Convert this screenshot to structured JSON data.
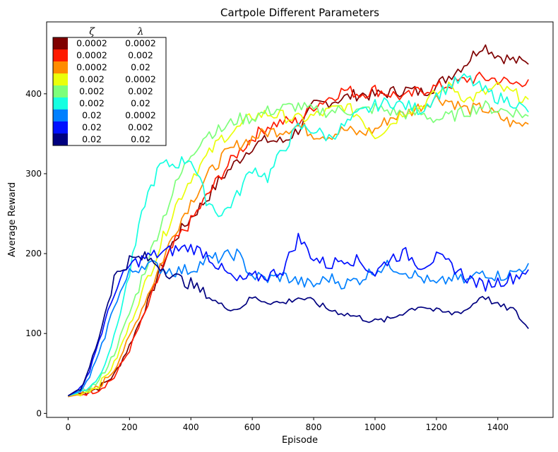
{
  "chart_data": {
    "type": "line",
    "title": "Cartpole Different Parameters",
    "xlabel": "Episode",
    "ylabel": "Average Reward",
    "xlim": [
      -70,
      1580
    ],
    "ylim": [
      -5,
      490
    ],
    "xticks": [
      0,
      200,
      400,
      600,
      800,
      1000,
      1200,
      1400
    ],
    "yticks": [
      0,
      100,
      200,
      300,
      400
    ],
    "grid": false,
    "legend": {
      "placement": "top-left",
      "columns": [
        "ζ",
        "λ"
      ],
      "rows": [
        {
          "zeta": "0.0002",
          "lambda": "0.0002",
          "color": "#7f0000"
        },
        {
          "zeta": "0.0002",
          "lambda": "0.002",
          "color": "#ff1a00"
        },
        {
          "zeta": "0.0002",
          "lambda": "0.02",
          "color": "#ff8c00"
        },
        {
          "zeta": "0.002",
          "lambda": "0.0002",
          "color": "#eaff0c"
        },
        {
          "zeta": "0.002",
          "lambda": "0.002",
          "color": "#7dff7a"
        },
        {
          "zeta": "0.002",
          "lambda": "0.02",
          "color": "#16ffe1"
        },
        {
          "zeta": "0.02",
          "lambda": "0.0002",
          "color": "#0080ff"
        },
        {
          "zeta": "0.02",
          "lambda": "0.002",
          "color": "#0010ff"
        },
        {
          "zeta": "0.02",
          "lambda": "0.02",
          "color": "#000080"
        }
      ]
    },
    "series": [
      {
        "color": "#7f0000",
        "points": [
          [
            0,
            22
          ],
          [
            50,
            26
          ],
          [
            100,
            32
          ],
          [
            150,
            48
          ],
          [
            200,
            85
          ],
          [
            250,
            130
          ],
          [
            300,
            180
          ],
          [
            350,
            220
          ],
          [
            400,
            245
          ],
          [
            450,
            268
          ],
          [
            500,
            295
          ],
          [
            550,
            315
          ],
          [
            600,
            335
          ],
          [
            650,
            342
          ],
          [
            700,
            340
          ],
          [
            750,
            355
          ],
          [
            800,
            385
          ],
          [
            850,
            390
          ],
          [
            900,
            395
          ],
          [
            950,
            400
          ],
          [
            1000,
            398
          ],
          [
            1050,
            402
          ],
          [
            1100,
            405
          ],
          [
            1150,
            402
          ],
          [
            1200,
            410
          ],
          [
            1250,
            425
          ],
          [
            1300,
            440
          ],
          [
            1350,
            462
          ],
          [
            1400,
            448
          ],
          [
            1450,
            442
          ],
          [
            1500,
            437
          ]
        ]
      },
      {
        "color": "#ff1a00",
        "points": [
          [
            0,
            21
          ],
          [
            50,
            25
          ],
          [
            100,
            30
          ],
          [
            150,
            45
          ],
          [
            200,
            80
          ],
          [
            250,
            125
          ],
          [
            300,
            175
          ],
          [
            350,
            215
          ],
          [
            400,
            240
          ],
          [
            450,
            270
          ],
          [
            500,
            300
          ],
          [
            550,
            325
          ],
          [
            600,
            345
          ],
          [
            650,
            360
          ],
          [
            700,
            365
          ],
          [
            750,
            365
          ],
          [
            800,
            385
          ],
          [
            850,
            395
          ],
          [
            900,
            405
          ],
          [
            950,
            400
          ],
          [
            1000,
            405
          ],
          [
            1050,
            400
          ],
          [
            1100,
            395
          ],
          [
            1150,
            405
          ],
          [
            1200,
            408
          ],
          [
            1250,
            412
          ],
          [
            1300,
            418
          ],
          [
            1350,
            420
          ],
          [
            1400,
            418
          ],
          [
            1450,
            412
          ],
          [
            1500,
            418
          ]
        ]
      },
      {
        "color": "#ff8c00",
        "points": [
          [
            0,
            21
          ],
          [
            50,
            25
          ],
          [
            100,
            33
          ],
          [
            150,
            55
          ],
          [
            200,
            95
          ],
          [
            250,
            140
          ],
          [
            300,
            185
          ],
          [
            350,
            230
          ],
          [
            400,
            265
          ],
          [
            450,
            295
          ],
          [
            500,
            320
          ],
          [
            550,
            335
          ],
          [
            600,
            345
          ],
          [
            650,
            352
          ],
          [
            700,
            355
          ],
          [
            750,
            360
          ],
          [
            800,
            350
          ],
          [
            850,
            348
          ],
          [
            900,
            355
          ],
          [
            950,
            350
          ],
          [
            1000,
            355
          ],
          [
            1050,
            370
          ],
          [
            1100,
            375
          ],
          [
            1150,
            385
          ],
          [
            1200,
            395
          ],
          [
            1250,
            390
          ],
          [
            1300,
            380
          ],
          [
            1350,
            382
          ],
          [
            1400,
            372
          ],
          [
            1450,
            362
          ],
          [
            1500,
            362
          ]
        ]
      },
      {
        "color": "#eaff0c",
        "points": [
          [
            0,
            22
          ],
          [
            50,
            26
          ],
          [
            100,
            35
          ],
          [
            150,
            62
          ],
          [
            200,
            110
          ],
          [
            250,
            160
          ],
          [
            300,
            210
          ],
          [
            350,
            260
          ],
          [
            400,
            295
          ],
          [
            450,
            320
          ],
          [
            500,
            345
          ],
          [
            550,
            355
          ],
          [
            600,
            372
          ],
          [
            650,
            375
          ],
          [
            700,
            372
          ],
          [
            750,
            368
          ],
          [
            800,
            372
          ],
          [
            850,
            378
          ],
          [
            900,
            385
          ],
          [
            950,
            372
          ],
          [
            1000,
            348
          ],
          [
            1050,
            362
          ],
          [
            1100,
            380
          ],
          [
            1150,
            385
          ],
          [
            1200,
            400
          ],
          [
            1250,
            410
          ],
          [
            1300,
            392
          ],
          [
            1350,
            400
          ],
          [
            1400,
            408
          ],
          [
            1450,
            400
          ],
          [
            1500,
            393
          ]
        ]
      },
      {
        "color": "#7dff7a",
        "points": [
          [
            0,
            22
          ],
          [
            50,
            27
          ],
          [
            100,
            40
          ],
          [
            150,
            75
          ],
          [
            200,
            125
          ],
          [
            250,
            180
          ],
          [
            300,
            235
          ],
          [
            350,
            285
          ],
          [
            400,
            325
          ],
          [
            450,
            350
          ],
          [
            500,
            355
          ],
          [
            550,
            368
          ],
          [
            600,
            370
          ],
          [
            650,
            378
          ],
          [
            700,
            382
          ],
          [
            750,
            385
          ],
          [
            800,
            378
          ],
          [
            850,
            378
          ],
          [
            900,
            380
          ],
          [
            950,
            378
          ],
          [
            1000,
            382
          ],
          [
            1050,
            378
          ],
          [
            1100,
            375
          ],
          [
            1150,
            375
          ],
          [
            1200,
            368
          ],
          [
            1250,
            372
          ],
          [
            1300,
            378
          ],
          [
            1350,
            385
          ],
          [
            1400,
            380
          ],
          [
            1450,
            378
          ],
          [
            1500,
            372
          ]
        ]
      },
      {
        "color": "#16ffe1",
        "points": [
          [
            0,
            22
          ],
          [
            50,
            28
          ],
          [
            100,
            45
          ],
          [
            150,
            95
          ],
          [
            200,
            175
          ],
          [
            250,
            265
          ],
          [
            300,
            310
          ],
          [
            350,
            312
          ],
          [
            400,
            320
          ],
          [
            450,
            268
          ],
          [
            500,
            248
          ],
          [
            550,
            272
          ],
          [
            600,
            308
          ],
          [
            650,
            295
          ],
          [
            700,
            330
          ],
          [
            750,
            358
          ],
          [
            800,
            355
          ],
          [
            850,
            345
          ],
          [
            900,
            360
          ],
          [
            950,
            375
          ],
          [
            1000,
            385
          ],
          [
            1050,
            390
          ],
          [
            1100,
            385
          ],
          [
            1150,
            380
          ],
          [
            1200,
            398
          ],
          [
            1250,
            412
          ],
          [
            1300,
            420
          ],
          [
            1350,
            405
          ],
          [
            1400,
            395
          ],
          [
            1450,
            390
          ],
          [
            1500,
            377
          ]
        ]
      },
      {
        "color": "#0080ff",
        "points": [
          [
            0,
            22
          ],
          [
            50,
            30
          ],
          [
            100,
            72
          ],
          [
            150,
            135
          ],
          [
            200,
            175
          ],
          [
            250,
            188
          ],
          [
            300,
            182
          ],
          [
            350,
            178
          ],
          [
            400,
            180
          ],
          [
            450,
            192
          ],
          [
            500,
            195
          ],
          [
            550,
            200
          ],
          [
            600,
            172
          ],
          [
            650,
            168
          ],
          [
            700,
            172
          ],
          [
            750,
            165
          ],
          [
            800,
            160
          ],
          [
            850,
            170
          ],
          [
            900,
            162
          ],
          [
            950,
            168
          ],
          [
            1000,
            180
          ],
          [
            1050,
            185
          ],
          [
            1100,
            178
          ],
          [
            1150,
            170
          ],
          [
            1200,
            160
          ],
          [
            1250,
            170
          ],
          [
            1300,
            165
          ],
          [
            1350,
            178
          ],
          [
            1400,
            172
          ],
          [
            1450,
            175
          ],
          [
            1500,
            188
          ]
        ]
      },
      {
        "color": "#0010ff",
        "points": [
          [
            0,
            22
          ],
          [
            50,
            33
          ],
          [
            100,
            90
          ],
          [
            150,
            150
          ],
          [
            200,
            185
          ],
          [
            250,
            195
          ],
          [
            300,
            200
          ],
          [
            350,
            205
          ],
          [
            400,
            208
          ],
          [
            450,
            200
          ],
          [
            500,
            180
          ],
          [
            550,
            165
          ],
          [
            600,
            170
          ],
          [
            650,
            172
          ],
          [
            700,
            180
          ],
          [
            750,
            220
          ],
          [
            800,
            195
          ],
          [
            850,
            185
          ],
          [
            900,
            195
          ],
          [
            950,
            190
          ],
          [
            1000,
            175
          ],
          [
            1050,
            195
          ],
          [
            1100,
            200
          ],
          [
            1150,
            185
          ],
          [
            1200,
            195
          ],
          [
            1250,
            185
          ],
          [
            1300,
            170
          ],
          [
            1350,
            160
          ],
          [
            1400,
            165
          ],
          [
            1450,
            170
          ],
          [
            1500,
            180
          ]
        ]
      },
      {
        "color": "#000080",
        "points": [
          [
            0,
            22
          ],
          [
            50,
            34
          ],
          [
            100,
            95
          ],
          [
            150,
            170
          ],
          [
            200,
            192
          ],
          [
            250,
            195
          ],
          [
            300,
            185
          ],
          [
            350,
            170
          ],
          [
            400,
            162
          ],
          [
            450,
            148
          ],
          [
            500,
            135
          ],
          [
            550,
            130
          ],
          [
            600,
            145
          ],
          [
            650,
            140
          ],
          [
            700,
            138
          ],
          [
            750,
            145
          ],
          [
            800,
            140
          ],
          [
            850,
            130
          ],
          [
            900,
            125
          ],
          [
            950,
            120
          ],
          [
            1000,
            115
          ],
          [
            1050,
            118
          ],
          [
            1100,
            128
          ],
          [
            1150,
            135
          ],
          [
            1200,
            128
          ],
          [
            1250,
            125
          ],
          [
            1300,
            130
          ],
          [
            1350,
            148
          ],
          [
            1400,
            135
          ],
          [
            1450,
            130
          ],
          [
            1500,
            106
          ]
        ]
      }
    ]
  }
}
